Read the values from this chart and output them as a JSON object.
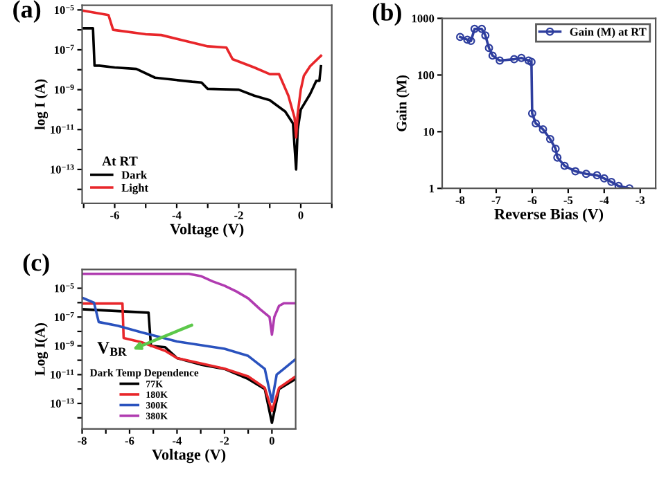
{
  "chart_data": [
    {
      "type": "line",
      "title": "(a)",
      "xlabel": "Voltage (V)",
      "ylabel": "log I (A)",
      "log": "y",
      "legend": "bottom left",
      "legend_title": "At RT",
      "grid": false,
      "xlim": [
        -7.05,
        1
      ],
      "ylim": [
        2e-15,
        1.7e-05
      ],
      "xticks": [
        {
          "value": -7,
          "label": null
        },
        -6,
        {
          "value": -5,
          "label": null
        },
        -4,
        {
          "value": -3,
          "label": null
        },
        -2,
        {
          "value": -1,
          "label": null
        },
        0,
        {
          "value": 1,
          "label": null
        }
      ],
      "yticks": [
        {
          "value": 1e-05,
          "label": "10$^{−5}$"
        },
        {
          "value": 1e-06,
          "label": null
        },
        {
          "value": 1e-07,
          "label": "10$^{−7}$"
        },
        {
          "value": 1e-08,
          "label": null
        },
        {
          "value": 1e-09,
          "label": "10$^{−9}$"
        },
        {
          "value": 1e-10,
          "label": null
        },
        {
          "value": 1e-11,
          "label": "10$^{−11}$"
        },
        {
          "value": 1e-12,
          "label": null
        },
        {
          "value": 1e-13,
          "label": "10$^{−13}$"
        },
        {
          "value": 1e-14,
          "label": null
        }
      ],
      "series": [
        {
          "name": "Dark",
          "color": "#000000",
          "x": [
            -7.0,
            -6.7,
            -6.65,
            -6.5,
            -6.0,
            -5.3,
            -4.7,
            -3.5,
            -3.2,
            -3.0,
            -2.0,
            -1.5,
            -1.0,
            -0.5,
            -0.25,
            -0.15,
            -0.1,
            0.0,
            0.3,
            0.5,
            0.6,
            0.65
          ],
          "values": [
            1.2e-06,
            1.2e-06,
            1.6e-08,
            1.6e-08,
            1.3e-08,
            1.1e-08,
            4e-09,
            2.5e-09,
            2.3e-09,
            1.1e-09,
            1e-09,
            5e-10,
            3e-10,
            8e-11,
            2e-11,
            1e-13,
            1e-11,
            1e-10,
            6e-10,
            2.8e-09,
            2.8e-09,
            1.5e-08
          ]
        },
        {
          "name": "Light",
          "color": "#e8262a",
          "x": [
            -7.0,
            -6.2,
            -6.05,
            -5.0,
            -4.5,
            -3.0,
            -2.4,
            -2.2,
            -1.5,
            -1.0,
            -0.7,
            -0.4,
            -0.2,
            -0.15,
            -0.1,
            0.0,
            0.1,
            0.3,
            0.65
          ],
          "values": [
            9e-06,
            5.5e-06,
            1e-06,
            6e-07,
            5.5e-07,
            1.5e-07,
            1.3e-07,
            3.4e-08,
            1.3e-08,
            6e-09,
            6e-09,
            5e-10,
            4e-11,
            4e-12,
            6e-11,
            1e-09,
            5e-09,
            1.5e-08,
            5e-08
          ]
        }
      ]
    },
    {
      "type": "line",
      "title": "(b)",
      "xlabel": "Reverse Bias (V)",
      "ylabel": "Gain (M)",
      "log": "y",
      "legend": "top right",
      "marker": "circle",
      "grid": false,
      "xlim": [
        -8.5,
        -2.57
      ],
      "ylim": [
        1,
        1000
      ],
      "xticks": [
        -8,
        -7,
        -6,
        -5,
        -4,
        -3
      ],
      "yticks": [
        1,
        10,
        100,
        1000
      ],
      "series": [
        {
          "name": "Gain (M) at RT",
          "color": "#2e3e9e",
          "x": [
            -8.0,
            -7.8,
            -7.7,
            -7.6,
            -7.4,
            -7.3,
            -7.2,
            -7.1,
            -6.9,
            -6.5,
            -6.3,
            -6.1,
            -6.02,
            -6.0,
            -5.9,
            -5.7,
            -5.5,
            -5.35,
            -5.3,
            -5.1,
            -4.8,
            -4.5,
            -4.2,
            -4.0,
            -3.8,
            -3.6,
            -3.3
          ],
          "values": [
            470,
            420,
            400,
            650,
            650,
            500,
            300,
            220,
            180,
            190,
            200,
            180,
            170,
            21,
            14,
            11,
            7.4,
            5,
            3.5,
            2.5,
            2.0,
            1.8,
            1.7,
            1.5,
            1.3,
            1.1,
            1.0
          ]
        }
      ]
    },
    {
      "type": "line",
      "title": "(c)",
      "xlabel": "Voltage (V)",
      "ylabel": "Log I(A)",
      "log": "y",
      "legend": "bottom left",
      "legend_title": "Dark Temp Dependence",
      "grid": false,
      "xlim": [
        -8,
        1
      ],
      "ylim": [
        1.7e-15,
        0.0002
      ],
      "xticks": [
        -8,
        {
          "value": -7,
          "label": null
        },
        -6,
        {
          "value": -5,
          "label": null
        },
        -4,
        {
          "value": -3,
          "label": null
        },
        -2,
        {
          "value": -1,
          "label": null
        },
        0
      ],
      "yticks": [
        {
          "value": 1e-05,
          "label": "10$^{−5}$"
        },
        {
          "value": 1e-06,
          "label": null
        },
        {
          "value": 1e-07,
          "label": "10$^{−7}$"
        },
        {
          "value": 1e-08,
          "label": null
        },
        {
          "value": 1e-09,
          "label": "10$^{−9}$"
        },
        {
          "value": 1e-10,
          "label": null
        },
        {
          "value": 1e-11,
          "label": "10$^{−11}$"
        },
        {
          "value": 1e-12,
          "label": null
        },
        {
          "value": 1e-13,
          "label": "10$^{−13}$"
        },
        {
          "value": 1e-14,
          "label": null
        }
      ],
      "annotations": [
        "V$_{BR}$"
      ],
      "series": [
        {
          "name": "77K",
          "color": "#000000",
          "x": [
            -8.0,
            -5.2,
            -5.1,
            -4.5,
            -4.0,
            -3.0,
            -2.0,
            -1.0,
            -0.3,
            0.0,
            0.3,
            1.0
          ],
          "values": [
            3.5e-07,
            2e-07,
            1e-09,
            8e-10,
            1.4e-10,
            5e-11,
            2.5e-11,
            5e-12,
            1e-12,
            4.5e-15,
            1e-12,
            5e-12
          ]
        },
        {
          "name": "180K",
          "color": "#e8262a",
          "x": [
            -8.0,
            -6.3,
            -6.25,
            -5.5,
            -4.5,
            -4.0,
            -2.0,
            -1.0,
            -0.3,
            0.0,
            0.3,
            1.0
          ],
          "values": [
            8.7e-07,
            8.7e-07,
            3.5e-09,
            1.8e-09,
            4.5e-10,
            1.4e-10,
            2.6e-11,
            7.5e-12,
            1.2e-12,
            3e-14,
            1.2e-12,
            7.5e-12
          ]
        },
        {
          "name": "300K",
          "color": "#2a52be",
          "x": [
            -8.0,
            -7.5,
            -7.3,
            -6.5,
            -5.5,
            -4.0,
            -2.0,
            -1.0,
            -0.3,
            0.0,
            0.2,
            0.5,
            1.0
          ],
          "values": [
            2.2e-06,
            1e-06,
            4.5e-08,
            2.5e-08,
            8.7e-09,
            2e-09,
            6.3e-10,
            2e-10,
            2.5e-11,
            1.3e-13,
            1e-11,
            2.5e-11,
            1.2e-10
          ]
        },
        {
          "name": "380K",
          "color": "#b03bb0",
          "x": [
            -8.0,
            -3.5,
            -3.0,
            -2.5,
            -2.0,
            -1.5,
            -1.0,
            -0.5,
            -0.1,
            0.0,
            0.1,
            0.3,
            0.5,
            1.0
          ],
          "values": [
            0.0001,
            0.0001,
            7e-05,
            3e-05,
            1.5e-05,
            6e-06,
            2e-06,
            3.5e-07,
            1e-07,
            6e-09,
            1e-07,
            6e-07,
            9e-07,
            9e-07
          ]
        }
      ]
    }
  ]
}
